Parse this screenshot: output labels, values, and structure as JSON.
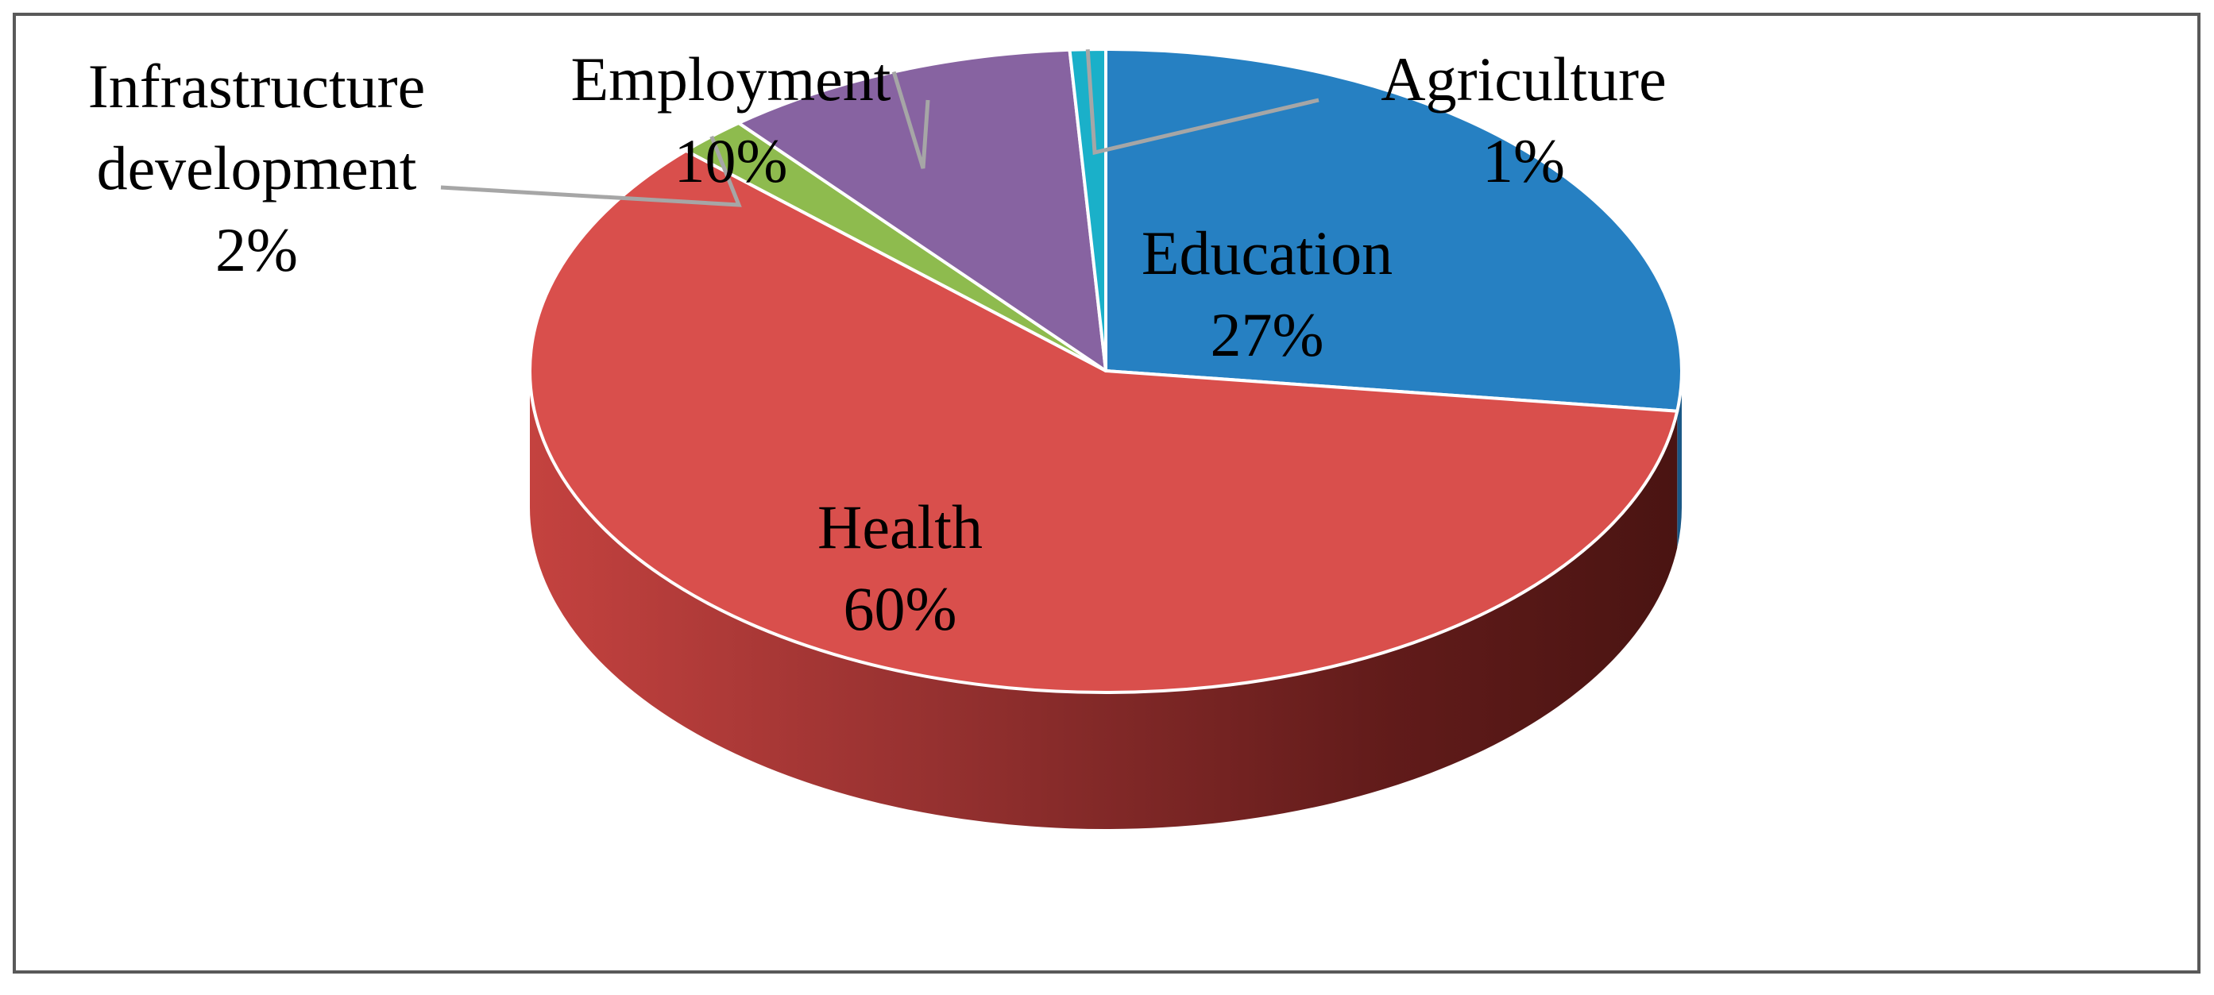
{
  "chart_data": {
    "type": "pie",
    "style": "3d",
    "title": "",
    "legend": "none",
    "slices": [
      {
        "label": "Education",
        "value": 27,
        "value_label": "27%",
        "color": "#2680c2",
        "side_color": "#1a5886"
      },
      {
        "label": "Health",
        "value": 60,
        "value_label": "60%",
        "color": "#d94f4c",
        "side_color": "#a83a37"
      },
      {
        "label": "Infrastructure development",
        "label_lines": [
          "Infrastructure",
          "development"
        ],
        "value": 2,
        "value_label": "2%",
        "color": "#8ebb4e",
        "side_color": "#5f8233"
      },
      {
        "label": "Employment",
        "value": 10,
        "value_label": "10%",
        "color": "#8763a1",
        "side_color": "#5b4270"
      },
      {
        "label": "Agriculture",
        "value": 1,
        "value_label": "1%",
        "color": "#1ab0c9",
        "side_color": "#11798b"
      }
    ],
    "frame_color": "#595959",
    "leader_color": "#a6a6a6"
  }
}
